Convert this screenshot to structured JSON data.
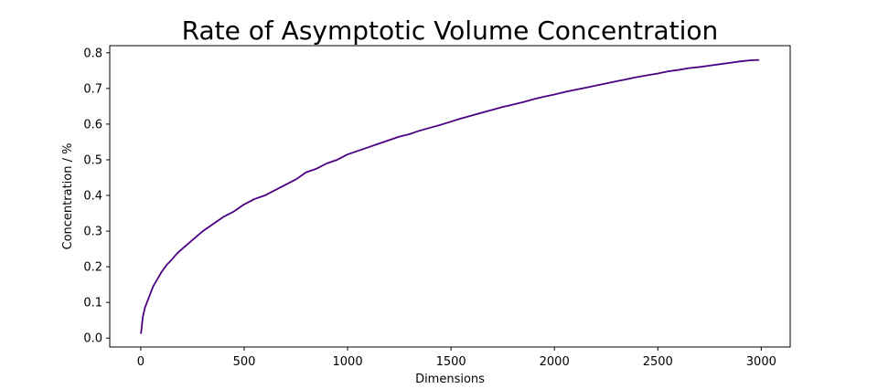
{
  "chart_data": {
    "type": "line",
    "title": "Rate of Asymptotic Volume Concentration",
    "xlabel": "Dimensions",
    "ylabel": "Concentration / %",
    "xlim": [
      -150,
      3140
    ],
    "ylim": [
      -0.025,
      0.82
    ],
    "xticks": [
      0,
      500,
      1000,
      1500,
      2000,
      2500,
      3000
    ],
    "yticks": [
      0.0,
      0.1,
      0.2,
      0.3,
      0.4,
      0.5,
      0.6,
      0.7,
      0.8
    ],
    "xtick_labels": [
      "0",
      "500",
      "1000",
      "1500",
      "2000",
      "2500",
      "3000"
    ],
    "ytick_labels": [
      "0.0",
      "0.1",
      "0.2",
      "0.3",
      "0.4",
      "0.5",
      "0.6",
      "0.7",
      "0.8"
    ],
    "grid": false,
    "series": [
      {
        "color": "#4b0082",
        "x": [
          1,
          10,
          20,
          30,
          40,
          50,
          60,
          80,
          100,
          125,
          150,
          175,
          200,
          250,
          300,
          350,
          400,
          450,
          500,
          550,
          600,
          650,
          700,
          750,
          800,
          850,
          900,
          950,
          1000,
          1050,
          1100,
          1150,
          1200,
          1250,
          1300,
          1350,
          1400,
          1450,
          1500,
          1550,
          1600,
          1650,
          1700,
          1750,
          1800,
          1850,
          1900,
          1950,
          2000,
          2050,
          2100,
          2150,
          2200,
          2250,
          2300,
          2350,
          2400,
          2450,
          2500,
          2550,
          2600,
          2650,
          2700,
          2750,
          2800,
          2850,
          2900,
          2950,
          2990
        ],
        "y": [
          0.012,
          0.06,
          0.085,
          0.1,
          0.115,
          0.13,
          0.145,
          0.165,
          0.185,
          0.205,
          0.22,
          0.237,
          0.25,
          0.275,
          0.3,
          0.32,
          0.34,
          0.355,
          0.375,
          0.39,
          0.4,
          0.415,
          0.43,
          0.445,
          0.465,
          0.475,
          0.49,
          0.5,
          0.515,
          0.525,
          0.535,
          0.545,
          0.555,
          0.565,
          0.572,
          0.582,
          0.59,
          0.598,
          0.607,
          0.616,
          0.624,
          0.632,
          0.64,
          0.648,
          0.655,
          0.662,
          0.67,
          0.677,
          0.683,
          0.69,
          0.696,
          0.702,
          0.708,
          0.714,
          0.72,
          0.726,
          0.732,
          0.737,
          0.742,
          0.748,
          0.752,
          0.757,
          0.76,
          0.764,
          0.768,
          0.772,
          0.776,
          0.779,
          0.78
        ]
      }
    ]
  }
}
